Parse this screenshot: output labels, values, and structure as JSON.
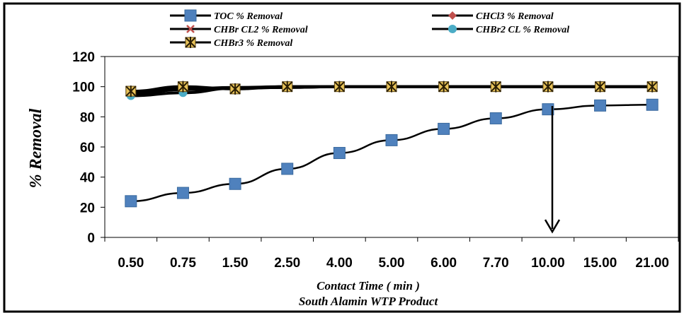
{
  "chart_data": {
    "type": "line",
    "categories": [
      "0.50",
      "0.75",
      "1.50",
      "2.50",
      "4.00",
      "5.00",
      "6.00",
      "7.70",
      "10.00",
      "15.00",
      "21.00"
    ],
    "xlabel": "Contact Time  ( min )",
    "subtitle": "South Alamin WTP Product",
    "ylabel": "%  Removal",
    "ylim": [
      0,
      120
    ],
    "yticks": [
      0,
      20,
      40,
      60,
      80,
      100,
      120
    ],
    "grid": false,
    "legend_position": "top",
    "annotation": "arrow-down-at-10.00",
    "series": [
      {
        "name": "TOC % Removal",
        "color": "#4f81bd",
        "marker": "square",
        "values": [
          24,
          29.5,
          35.5,
          45.5,
          56,
          64.5,
          72,
          79,
          85,
          87.5,
          88
        ]
      },
      {
        "name": "CHCl3 % Removal",
        "color": "#c0504d",
        "marker": "diamond",
        "values": [
          95,
          98,
          99,
          99.5,
          100,
          100,
          100,
          100,
          100,
          100,
          100
        ]
      },
      {
        "name": "CHBr CL2 % Removal",
        "color": "#c0504d",
        "marker": "cross",
        "values": [
          96,
          98.5,
          99.5,
          100,
          100,
          100,
          100,
          100,
          100,
          100,
          100
        ]
      },
      {
        "name": "CHBr2 CL % Removal",
        "color": "#4bacc6",
        "marker": "circle",
        "values": [
          94,
          96,
          99,
          99.5,
          100,
          100,
          100,
          100,
          100,
          100,
          100
        ]
      },
      {
        "name": "CHBr3 % Removal",
        "color": "#c49a2c",
        "marker": "star",
        "values": [
          97,
          100,
          98.5,
          100,
          100,
          100,
          100,
          100,
          100,
          100,
          100
        ]
      }
    ]
  }
}
